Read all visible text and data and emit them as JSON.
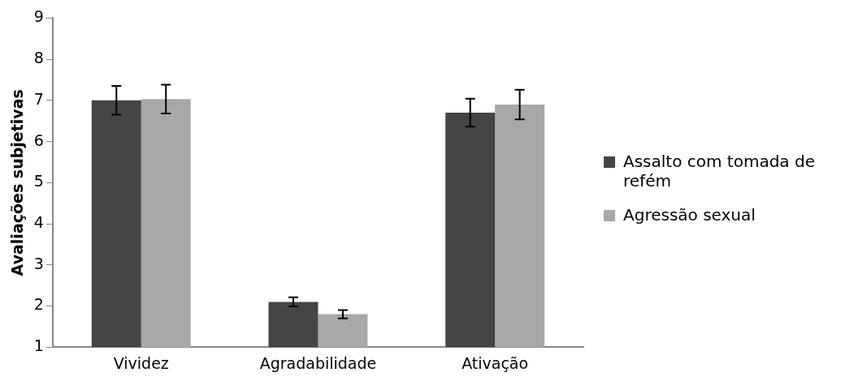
{
  "chart_data": {
    "type": "bar",
    "ylabel": "Avaliações subjetivas",
    "categories": [
      "Vividez",
      "Agradabilidade",
      "Ativação"
    ],
    "series": [
      {
        "name": "Assalto com tomada de refém",
        "color": "#454545",
        "values": [
          7.0,
          2.1,
          6.7
        ],
        "errors": [
          0.35,
          0.11,
          0.34
        ]
      },
      {
        "name": "Agressão sexual",
        "color": "#a8a8a8",
        "values": [
          7.03,
          1.8,
          6.9
        ],
        "errors": [
          0.35,
          0.1,
          0.36
        ]
      }
    ],
    "ylim": [
      1,
      9
    ],
    "yticks": [
      1,
      2,
      3,
      4,
      5,
      6,
      7,
      8,
      9
    ],
    "grid": false,
    "legend": "right"
  }
}
